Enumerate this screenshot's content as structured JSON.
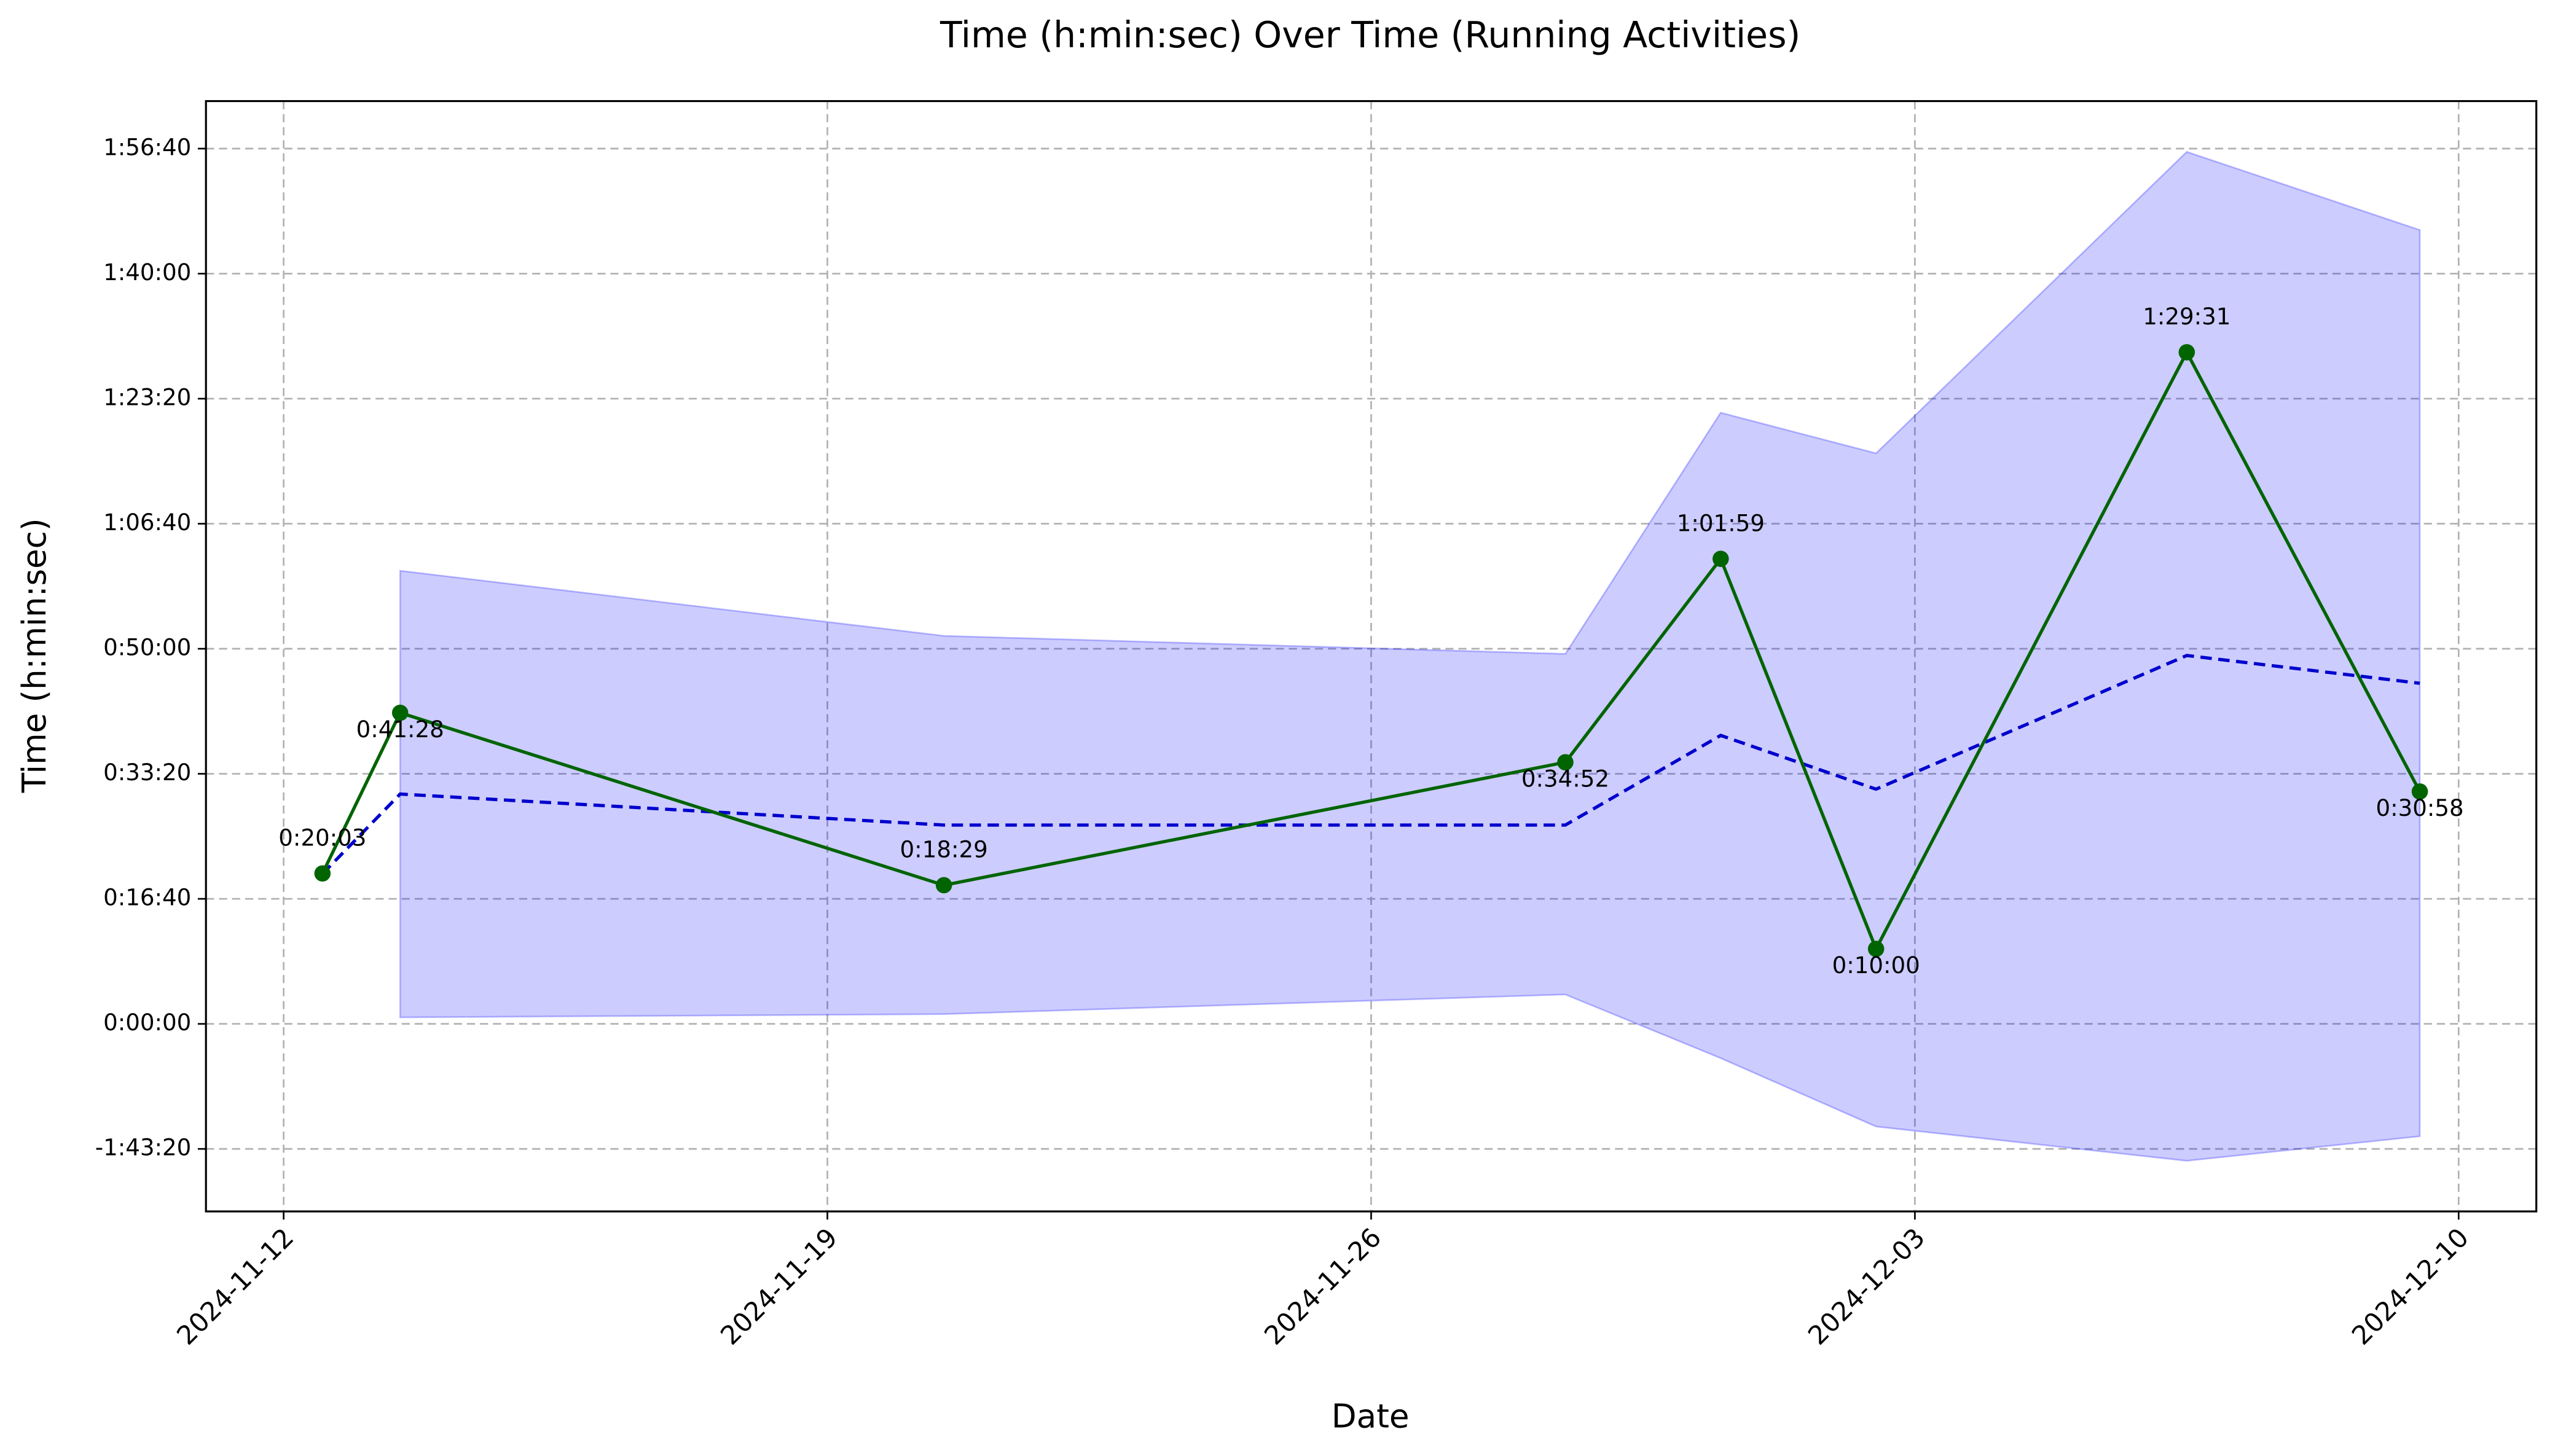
{
  "chart_data": {
    "type": "line",
    "title": "Time (h:min:sec) Over Time (Running Activities)",
    "x_label": "Date",
    "y_label": "Time (h:min:sec)",
    "x": [
      "2024-11-12",
      "2024-11-13",
      "2024-11-20",
      "2024-11-28",
      "2024-11-30",
      "2024-12-02",
      "2024-12-06",
      "2024-12-09"
    ],
    "series": [
      {
        "color": "#006400",
        "style": "solid",
        "markers": true,
        "values": [
          1203,
          2488,
          1109,
          2092,
          3719,
          600,
          5371,
          1858
        ],
        "value_labels": [
          "0:20:03",
          "0:41:28",
          "0:18:29",
          "0:34:52",
          "1:01:59",
          "0:10:00",
          "1:29:31",
          "0:30:58"
        ]
      },
      {
        "color": "#0000cd",
        "style": "dashed",
        "markers": false,
        "values": [
          1200,
          1838,
          1590,
          1590,
          2307,
          1877,
          2946,
          2724
        ]
      }
    ],
    "band": {
      "color": "#0000ff",
      "upper": [
        null,
        3624,
        3103,
        2959,
        4888,
        4563,
        6974,
        6349
      ],
      "lower": [
        null,
        52,
        78,
        235,
        -274,
        -821,
        -1095,
        -899
      ]
    },
    "xlim": [
      "2024-11-11",
      "2024-12-11"
    ],
    "xticks": [
      "2024-11-12",
      "2024-11-19",
      "2024-11-26",
      "2024-12-03",
      "2024-12-10"
    ],
    "ylim": [
      -1500,
      7380
    ],
    "yticks": [
      {
        "value": -1000,
        "label": "-1:43:20"
      },
      {
        "value": 0,
        "label": "0:00:00"
      },
      {
        "value": 1000,
        "label": "0:16:40"
      },
      {
        "value": 2000,
        "label": "0:33:20"
      },
      {
        "value": 3000,
        "label": "0:50:00"
      },
      {
        "value": 4000,
        "label": "1:06:40"
      },
      {
        "value": 5000,
        "label": "1:23:20"
      },
      {
        "value": 6000,
        "label": "1:40:00"
      },
      {
        "value": 7000,
        "label": "1:56:40"
      }
    ],
    "grid": true
  }
}
